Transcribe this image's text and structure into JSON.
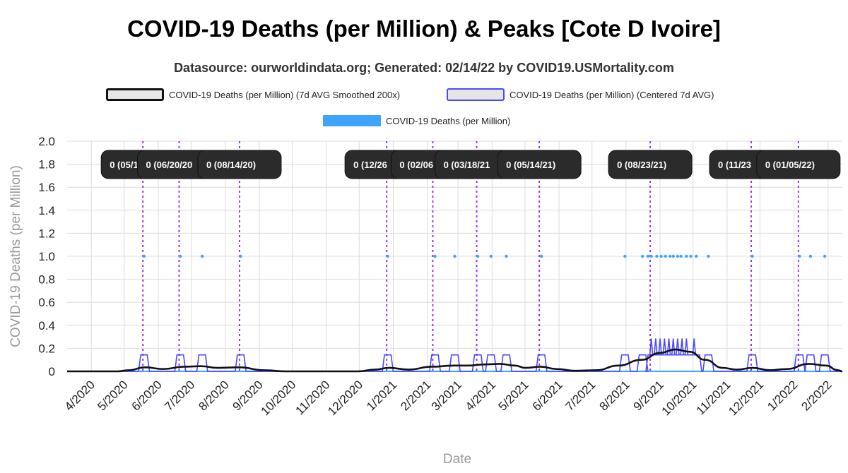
{
  "chart_data": {
    "type": "line",
    "title": "COVID-19 Deaths (per Million) & Peaks [Cote D Ivoire]",
    "subtitle": "Datasource: ourworldindata.org; Generated: 02/14/22 by COVID19.USMortality.com",
    "xlabel": "Date",
    "ylabel": "COVID-19 Deaths (per Million)",
    "ylim": [
      0,
      2.0
    ],
    "xlim": [
      "2020-03-10",
      "2022-02-14"
    ],
    "grid": true,
    "legend_position": "top",
    "y_ticks": [
      "0",
      "0.2",
      "0.4",
      "0.6",
      "0.8",
      "1.0",
      "1.2",
      "1.4",
      "1.6",
      "1.8",
      "2.0"
    ],
    "x_ticks": [
      {
        "date": "2020-04-01",
        "label": "4/2020"
      },
      {
        "date": "2020-05-01",
        "label": "5/2020"
      },
      {
        "date": "2020-06-01",
        "label": "6/2020"
      },
      {
        "date": "2020-07-01",
        "label": "7/2020"
      },
      {
        "date": "2020-08-01",
        "label": "8/2020"
      },
      {
        "date": "2020-09-01",
        "label": "9/2020"
      },
      {
        "date": "2020-10-01",
        "label": "10/2020"
      },
      {
        "date": "2020-11-01",
        "label": "11/2020"
      },
      {
        "date": "2020-12-01",
        "label": "12/2020"
      },
      {
        "date": "2021-01-01",
        "label": "1/2021"
      },
      {
        "date": "2021-02-01",
        "label": "2/2021"
      },
      {
        "date": "2021-03-01",
        "label": "3/2021"
      },
      {
        "date": "2021-04-01",
        "label": "4/2021"
      },
      {
        "date": "2021-05-01",
        "label": "5/2021"
      },
      {
        "date": "2021-06-01",
        "label": "6/2021"
      },
      {
        "date": "2021-07-01",
        "label": "7/2021"
      },
      {
        "date": "2021-08-01",
        "label": "8/2021"
      },
      {
        "date": "2021-09-01",
        "label": "9/2021"
      },
      {
        "date": "2021-10-01",
        "label": "10/2021"
      },
      {
        "date": "2021-11-01",
        "label": "11/2021"
      },
      {
        "date": "2021-12-01",
        "label": "12/2021"
      },
      {
        "date": "2022-01-01",
        "label": "1/2022"
      },
      {
        "date": "2022-02-01",
        "label": "2/2022"
      }
    ],
    "legend": [
      {
        "label": "COVID-19 Deaths (per Million) (7d AVG Smoothed 200x)",
        "color": "#111111"
      },
      {
        "label": "COVID-19 Deaths (per Million) (Centered 7d AVG)",
        "color": "#4a4aff"
      },
      {
        "label": "COVID-19 Deaths (per Million)",
        "color": "#3fa4ff"
      }
    ],
    "peak_line_color": "#9b30ff",
    "peaks": [
      {
        "date": "2020-05-18",
        "label": "0 (05/1"
      },
      {
        "date": "2020-06-20",
        "label": "0 (06/20/20"
      },
      {
        "date": "2020-08-14",
        "label": "0 (08/14/20)"
      },
      {
        "date": "2020-12-26",
        "label": "0 (12/26"
      },
      {
        "date": "2021-02-06",
        "label": "0 (02/06"
      },
      {
        "date": "2021-03-18",
        "label": "0 (03/18/21"
      },
      {
        "date": "2021-05-14",
        "label": "0 (05/14/21)"
      },
      {
        "date": "2021-08-23",
        "label": "0 (08/23/21)"
      },
      {
        "date": "2021-11-23",
        "label": "0 (11/23"
      },
      {
        "date": "2022-01-05",
        "label": "0 (01/05/22)"
      }
    ],
    "series": [
      {
        "name": "COVID-19 Deaths (per Million)",
        "color": "#3fa4ff",
        "type": "scatter",
        "points": [
          {
            "x": "2020-05-19",
            "y": 1.0
          },
          {
            "x": "2020-06-21",
            "y": 1.0
          },
          {
            "x": "2020-07-11",
            "y": 1.0
          },
          {
            "x": "2020-08-15",
            "y": 1.0
          },
          {
            "x": "2020-12-27",
            "y": 1.0
          },
          {
            "x": "2021-02-08",
            "y": 1.0
          },
          {
            "x": "2021-02-26",
            "y": 1.0
          },
          {
            "x": "2021-03-19",
            "y": 1.0
          },
          {
            "x": "2021-03-31",
            "y": 1.0
          },
          {
            "x": "2021-04-14",
            "y": 1.0
          },
          {
            "x": "2021-05-16",
            "y": 1.0
          },
          {
            "x": "2021-07-31",
            "y": 1.0
          },
          {
            "x": "2021-08-16",
            "y": 1.0
          },
          {
            "x": "2021-08-21",
            "y": 1.0
          },
          {
            "x": "2021-08-24",
            "y": 1.0
          },
          {
            "x": "2021-08-29",
            "y": 1.0
          },
          {
            "x": "2021-09-02",
            "y": 1.0
          },
          {
            "x": "2021-09-06",
            "y": 1.0
          },
          {
            "x": "2021-09-10",
            "y": 1.0
          },
          {
            "x": "2021-09-13",
            "y": 1.0
          },
          {
            "x": "2021-09-17",
            "y": 1.0
          },
          {
            "x": "2021-09-20",
            "y": 1.0
          },
          {
            "x": "2021-09-25",
            "y": 1.0
          },
          {
            "x": "2021-09-29",
            "y": 1.0
          },
          {
            "x": "2021-10-04",
            "y": 1.0
          },
          {
            "x": "2021-10-15",
            "y": 1.0
          },
          {
            "x": "2021-11-24",
            "y": 1.0
          },
          {
            "x": "2022-01-06",
            "y": 1.0
          },
          {
            "x": "2022-01-16",
            "y": 1.0
          },
          {
            "x": "2022-01-29",
            "y": 1.0
          }
        ]
      },
      {
        "name": "COVID-19 Deaths (per Million) (Centered 7d AVG)",
        "color": "#4a4aff",
        "type": "step",
        "windows": [
          {
            "start": "2020-05-16",
            "end": "2020-05-22",
            "y": 0.143
          },
          {
            "start": "2020-06-18",
            "end": "2020-06-24",
            "y": 0.143
          },
          {
            "start": "2020-07-08",
            "end": "2020-07-14",
            "y": 0.143
          },
          {
            "start": "2020-08-12",
            "end": "2020-08-18",
            "y": 0.143
          },
          {
            "start": "2020-12-24",
            "end": "2020-12-30",
            "y": 0.143
          },
          {
            "start": "2021-02-05",
            "end": "2021-02-11",
            "y": 0.143
          },
          {
            "start": "2021-02-23",
            "end": "2021-03-01",
            "y": 0.143
          },
          {
            "start": "2021-03-16",
            "end": "2021-03-22",
            "y": 0.143
          },
          {
            "start": "2021-03-28",
            "end": "2021-04-03",
            "y": 0.143
          },
          {
            "start": "2021-04-11",
            "end": "2021-04-17",
            "y": 0.143
          },
          {
            "start": "2021-05-13",
            "end": "2021-05-19",
            "y": 0.143
          },
          {
            "start": "2021-07-28",
            "end": "2021-08-03",
            "y": 0.143
          },
          {
            "start": "2021-08-13",
            "end": "2021-08-19",
            "y": 0.143
          },
          {
            "start": "2021-08-21",
            "end": "2021-10-07",
            "y": 0.143
          },
          {
            "start": "2021-10-12",
            "end": "2021-10-18",
            "y": 0.143
          },
          {
            "start": "2021-11-21",
            "end": "2021-11-27",
            "y": 0.143
          },
          {
            "start": "2022-01-03",
            "end": "2022-01-09",
            "y": 0.143
          },
          {
            "start": "2022-01-13",
            "end": "2022-01-19",
            "y": 0.143
          },
          {
            "start": "2022-01-26",
            "end": "2022-02-01",
            "y": 0.143
          }
        ],
        "spikes": [
          {
            "x": "2021-08-24",
            "y": 0.286
          },
          {
            "x": "2021-08-28",
            "y": 0.286
          },
          {
            "x": "2021-09-01",
            "y": 0.286
          },
          {
            "x": "2021-09-05",
            "y": 0.286
          },
          {
            "x": "2021-09-09",
            "y": 0.286
          },
          {
            "x": "2021-09-13",
            "y": 0.286
          },
          {
            "x": "2021-09-17",
            "y": 0.286
          },
          {
            "x": "2021-09-21",
            "y": 0.286
          },
          {
            "x": "2021-09-25",
            "y": 0.286
          },
          {
            "x": "2021-10-02",
            "y": 0.286
          }
        ]
      },
      {
        "name": "COVID-19 Deaths (per Million) (7d AVG Smoothed 200x)",
        "color": "#111111",
        "type": "line",
        "points": [
          {
            "x": "2020-03-10",
            "y": 0.0
          },
          {
            "x": "2020-04-25",
            "y": 0.0
          },
          {
            "x": "2020-05-05",
            "y": 0.01
          },
          {
            "x": "2020-05-20",
            "y": 0.035
          },
          {
            "x": "2020-06-05",
            "y": 0.02
          },
          {
            "x": "2020-06-25",
            "y": 0.04
          },
          {
            "x": "2020-07-10",
            "y": 0.045
          },
          {
            "x": "2020-07-25",
            "y": 0.03
          },
          {
            "x": "2020-08-14",
            "y": 0.035
          },
          {
            "x": "2020-09-05",
            "y": 0.01
          },
          {
            "x": "2020-09-25",
            "y": 0.0
          },
          {
            "x": "2020-11-30",
            "y": 0.0
          },
          {
            "x": "2020-12-15",
            "y": 0.015
          },
          {
            "x": "2020-12-28",
            "y": 0.03
          },
          {
            "x": "2021-01-15",
            "y": 0.015
          },
          {
            "x": "2021-02-05",
            "y": 0.04
          },
          {
            "x": "2021-02-25",
            "y": 0.05
          },
          {
            "x": "2021-03-10",
            "y": 0.05
          },
          {
            "x": "2021-03-25",
            "y": 0.06
          },
          {
            "x": "2021-04-08",
            "y": 0.065
          },
          {
            "x": "2021-04-22",
            "y": 0.05
          },
          {
            "x": "2021-05-01",
            "y": 0.03
          },
          {
            "x": "2021-05-15",
            "y": 0.04
          },
          {
            "x": "2021-05-30",
            "y": 0.02
          },
          {
            "x": "2021-06-15",
            "y": 0.005
          },
          {
            "x": "2021-07-05",
            "y": 0.01
          },
          {
            "x": "2021-07-25",
            "y": 0.05
          },
          {
            "x": "2021-08-15",
            "y": 0.1
          },
          {
            "x": "2021-09-01",
            "y": 0.16
          },
          {
            "x": "2021-09-15",
            "y": 0.19
          },
          {
            "x": "2021-09-28",
            "y": 0.17
          },
          {
            "x": "2021-10-12",
            "y": 0.1
          },
          {
            "x": "2021-10-28",
            "y": 0.03
          },
          {
            "x": "2021-11-10",
            "y": 0.015
          },
          {
            "x": "2021-11-24",
            "y": 0.03
          },
          {
            "x": "2021-12-10",
            "y": 0.01
          },
          {
            "x": "2021-12-25",
            "y": 0.02
          },
          {
            "x": "2022-01-15",
            "y": 0.065
          },
          {
            "x": "2022-01-30",
            "y": 0.05
          },
          {
            "x": "2022-02-10",
            "y": 0.01
          },
          {
            "x": "2022-02-14",
            "y": 0.0
          }
        ]
      }
    ]
  }
}
